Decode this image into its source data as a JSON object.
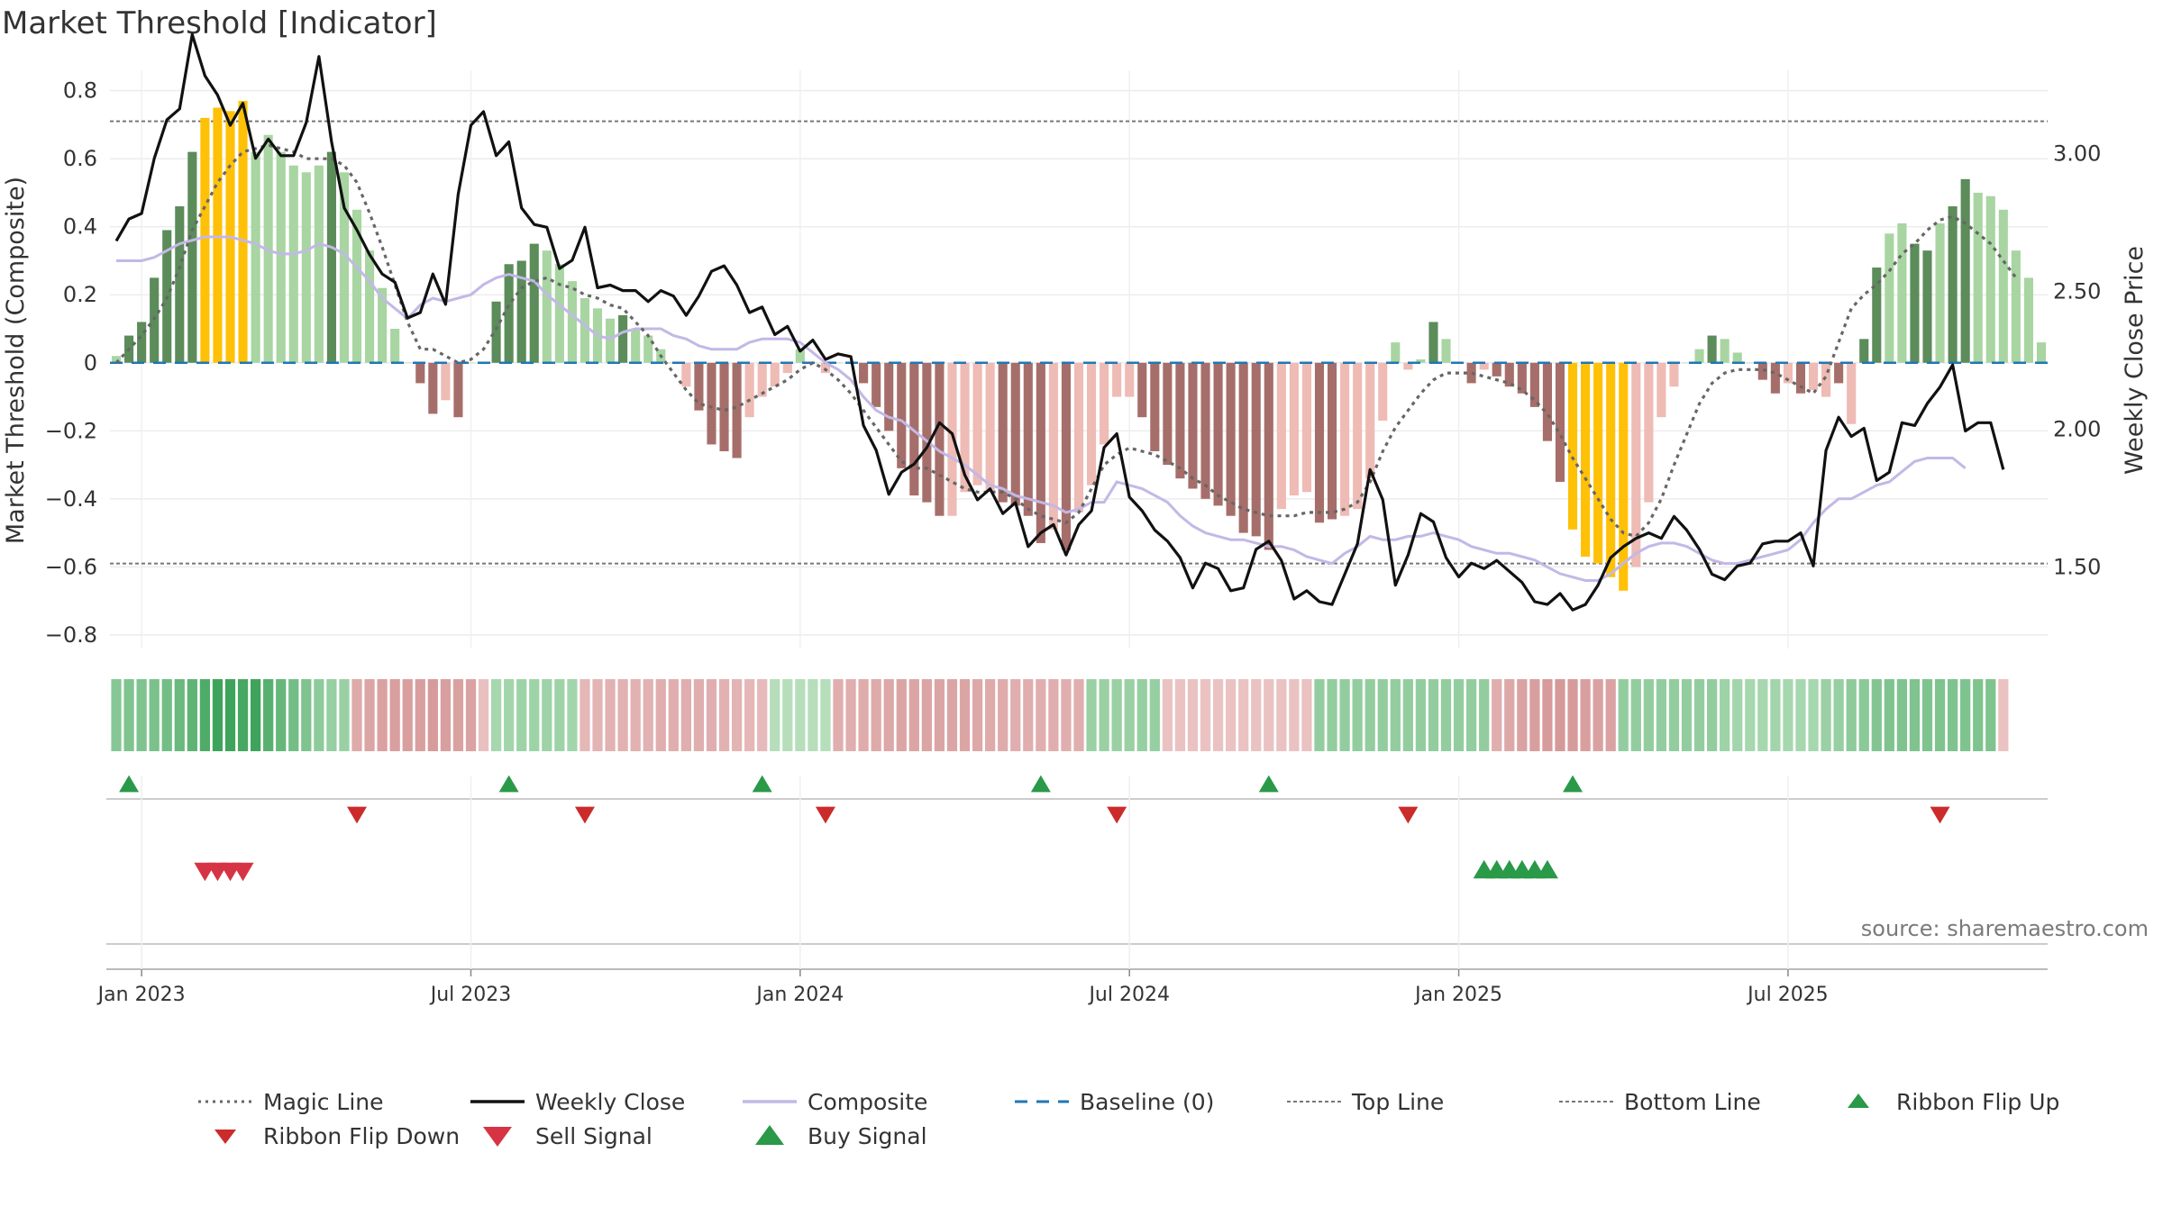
{
  "title": "Market Threshold [Indicator]",
  "source": "source: sharemaestro.com",
  "colors": {
    "dark_green": "#5b8c5a",
    "light_green": "#a8d5a2",
    "dark_red": "#a66e6a",
    "light_red": "#eebbb5",
    "gold": "#ffc107",
    "composite": "#c3b8e6",
    "baseline": "#1f77b4",
    "magic": "#666666",
    "close": "#111111",
    "buy": "#2a9948",
    "sell": "#d63445",
    "flip_up": "#2a9948",
    "flip_down": "#cc2b2b"
  },
  "legend": [
    {
      "label": "Magic Line",
      "icon": "dotted-line-icon"
    },
    {
      "label": "Weekly Close",
      "icon": "solid-line-icon"
    },
    {
      "label": "Composite",
      "icon": "lavender-line-icon"
    },
    {
      "label": "Baseline (0)",
      "icon": "dashed-line-icon"
    },
    {
      "label": "Top Line",
      "icon": "fine-dotted-line-icon"
    },
    {
      "label": "Bottom Line",
      "icon": "fine-dotted-line-icon"
    },
    {
      "label": "Ribbon Flip Up",
      "icon": "triangle-up-icon"
    },
    {
      "label": "Ribbon Flip Down",
      "icon": "triangle-down-icon"
    },
    {
      "label": "Sell Signal",
      "icon": "triangle-down-icon"
    },
    {
      "label": "Buy Signal",
      "icon": "triangle-up-icon"
    }
  ],
  "chart_data": {
    "type": "bar",
    "title": "Market Threshold [Indicator]",
    "ylabel": "Market Threshold (Composite)",
    "y2label": "Weekly Close Price",
    "ylim": [
      -0.84,
      0.86
    ],
    "y2lim": [
      1.2,
      3.3
    ],
    "yticks": [
      0.8,
      0.6,
      0.4,
      0.2,
      0,
      -0.2,
      -0.4,
      -0.6,
      -0.8
    ],
    "ytick_labels": [
      "0.8",
      "0.6",
      "0.4",
      "0.2",
      "0",
      "−0.2",
      "−0.4",
      "−0.6",
      "−0.8"
    ],
    "y2ticks": [
      3.0,
      2.5,
      2.0,
      1.5
    ],
    "y2tick_labels": [
      "3.00",
      "2.50",
      "2.00",
      "1.50"
    ],
    "xtick_labels": [
      "Jan 2023",
      "Jul 2023",
      "Jan 2024",
      "Jul 2024",
      "Jan 2025",
      "Jul 2025"
    ],
    "xtick_weeks": [
      2,
      28,
      54,
      80,
      106,
      132
    ],
    "top_line": 0.71,
    "bottom_line": -0.59,
    "baseline": 0,
    "grid": true,
    "legend_position": "bottom",
    "composite_bars": [
      0.02,
      0.08,
      0.12,
      0.25,
      0.39,
      0.46,
      0.62,
      0.72,
      0.75,
      0.74,
      0.77,
      0.62,
      0.67,
      0.62,
      0.58,
      0.56,
      0.58,
      0.62,
      0.56,
      0.45,
      0.33,
      0.22,
      0.1,
      0,
      -0.06,
      -0.15,
      -0.11,
      -0.16,
      0,
      0,
      0.18,
      0.29,
      0.3,
      0.35,
      0.33,
      0.29,
      0.24,
      0.19,
      0.16,
      0.13,
      0.14,
      0.1,
      0.08,
      0.04,
      0,
      -0.07,
      -0.14,
      -0.24,
      -0.26,
      -0.28,
      -0.16,
      -0.1,
      -0.07,
      -0.03,
      0.04,
      0,
      -0.03,
      0,
      0,
      -0.06,
      -0.13,
      -0.2,
      -0.31,
      -0.39,
      -0.41,
      -0.45,
      -0.45,
      -0.38,
      -0.36,
      -0.38,
      -0.41,
      -0.42,
      -0.45,
      -0.53,
      -0.49,
      -0.55,
      -0.44,
      -0.36,
      -0.24,
      -0.1,
      -0.1,
      -0.16,
      -0.26,
      -0.3,
      -0.34,
      -0.37,
      -0.4,
      -0.42,
      -0.45,
      -0.5,
      -0.51,
      -0.55,
      -0.43,
      -0.39,
      -0.38,
      -0.47,
      -0.46,
      -0.45,
      -0.43,
      -0.34,
      -0.17,
      0.06,
      -0.02,
      0.01,
      0.12,
      0.07,
      0,
      -0.06,
      -0.02,
      -0.04,
      -0.07,
      -0.09,
      -0.13,
      -0.23,
      -0.35,
      -0.49,
      -0.57,
      -0.59,
      -0.63,
      -0.67,
      -0.6,
      -0.41,
      -0.16,
      -0.07,
      0,
      0.04,
      0.08,
      0.07,
      0.03,
      0,
      -0.05,
      -0.09,
      -0.06,
      -0.09,
      -0.08,
      -0.1,
      -0.06,
      -0.18,
      0.07,
      0.28,
      0.38,
      0.41,
      0.35,
      0.33,
      0.41,
      0.46,
      0.54,
      0.5,
      0.49,
      0.45,
      0.33,
      0.25,
      0.06
    ],
    "bar_styles": [
      "L",
      "D",
      "D",
      "D",
      "D",
      "D",
      "D",
      "G",
      "G",
      "G",
      "G",
      "L",
      "L",
      "L",
      "L",
      "L",
      "L",
      "D",
      "L",
      "L",
      "L",
      "L",
      "L",
      "N",
      "D",
      "D",
      "L",
      "D",
      "N",
      "N",
      "D",
      "D",
      "D",
      "D",
      "L",
      "L",
      "L",
      "L",
      "L",
      "L",
      "D",
      "L",
      "L",
      "L",
      "N",
      "L",
      "D",
      "D",
      "D",
      "D",
      "L",
      "L",
      "L",
      "L",
      "L",
      "N",
      "L",
      "N",
      "N",
      "D",
      "D",
      "D",
      "D",
      "D",
      "D",
      "D",
      "L",
      "L",
      "L",
      "L",
      "D",
      "D",
      "D",
      "D",
      "L",
      "D",
      "L",
      "L",
      "L",
      "L",
      "L",
      "D",
      "D",
      "D",
      "D",
      "D",
      "D",
      "D",
      "D",
      "D",
      "D",
      "D",
      "L",
      "L",
      "L",
      "D",
      "D",
      "L",
      "L",
      "L",
      "L",
      "L",
      "L",
      "L",
      "D",
      "L",
      "N",
      "D",
      "L",
      "D",
      "D",
      "D",
      "D",
      "D",
      "D",
      "G",
      "G",
      "G",
      "G",
      "G",
      "L",
      "L",
      "L",
      "L",
      "N",
      "L",
      "D",
      "L",
      "L",
      "N",
      "D",
      "D",
      "L",
      "D",
      "L",
      "L",
      "D",
      "L",
      "D",
      "D",
      "L",
      "L",
      "D",
      "D",
      "L",
      "D",
      "D",
      "L",
      "L",
      "L",
      "L",
      "L"
    ],
    "weekly_close": [
      2.68,
      2.76,
      2.78,
      2.98,
      3.12,
      3.16,
      3.43,
      3.28,
      3.21,
      3.1,
      3.18,
      2.98,
      3.05,
      2.99,
      2.99,
      3.11,
      3.35,
      3.04,
      2.8,
      2.72,
      2.63,
      2.56,
      2.53,
      2.4,
      2.42,
      2.56,
      2.45,
      2.85,
      3.1,
      3.15,
      2.99,
      3.04,
      2.8,
      2.74,
      2.73,
      2.58,
      2.61,
      2.73,
      2.51,
      2.52,
      2.5,
      2.5,
      2.46,
      2.5,
      2.48,
      2.41,
      2.48,
      2.57,
      2.59,
      2.52,
      2.42,
      2.44,
      2.34,
      2.37,
      2.28,
      2.32,
      2.25,
      2.27,
      2.26,
      2.01,
      1.92,
      1.76,
      1.84,
      1.87,
      1.93,
      2.02,
      1.98,
      1.83,
      1.74,
      1.78,
      1.69,
      1.73,
      1.57,
      1.62,
      1.65,
      1.54,
      1.65,
      1.7,
      1.93,
      1.98,
      1.75,
      1.7,
      1.63,
      1.59,
      1.53,
      1.42,
      1.51,
      1.49,
      1.41,
      1.42,
      1.56,
      1.59,
      1.52,
      1.38,
      1.41,
      1.37,
      1.36,
      1.47,
      1.58,
      1.85,
      1.74,
      1.43,
      1.54,
      1.69,
      1.66,
      1.53,
      1.46,
      1.51,
      1.49,
      1.52,
      1.48,
      1.44,
      1.37,
      1.36,
      1.4,
      1.34,
      1.36,
      1.43,
      1.53,
      1.57,
      1.6,
      1.62,
      1.6,
      1.68,
      1.63,
      1.56,
      1.47,
      1.45,
      1.5,
      1.51,
      1.58,
      1.59,
      1.59,
      1.62,
      1.5,
      1.92,
      2.04,
      1.97,
      2.0,
      1.81,
      1.84,
      2.02,
      2.01,
      2.09,
      2.15,
      2.23,
      1.99,
      2.02,
      2.02,
      1.85
    ],
    "composite_line": [
      0.3,
      0.3,
      0.3,
      0.31,
      0.33,
      0.35,
      0.36,
      0.37,
      0.37,
      0.37,
      0.36,
      0.35,
      0.33,
      0.32,
      0.32,
      0.33,
      0.35,
      0.34,
      0.32,
      0.28,
      0.24,
      0.19,
      0.16,
      0.13,
      0.17,
      0.19,
      0.18,
      0.19,
      0.2,
      0.23,
      0.25,
      0.26,
      0.25,
      0.24,
      0.2,
      0.17,
      0.14,
      0.11,
      0.08,
      0.07,
      0.09,
      0.1,
      0.1,
      0.1,
      0.08,
      0.07,
      0.05,
      0.04,
      0.04,
      0.04,
      0.06,
      0.07,
      0.07,
      0.07,
      0.06,
      0.03,
      0.0,
      -0.02,
      -0.05,
      -0.1,
      -0.14,
      -0.16,
      -0.17,
      -0.2,
      -0.23,
      -0.26,
      -0.28,
      -0.3,
      -0.33,
      -0.36,
      -0.37,
      -0.39,
      -0.4,
      -0.41,
      -0.42,
      -0.44,
      -0.43,
      -0.41,
      -0.41,
      -0.35,
      -0.36,
      -0.37,
      -0.39,
      -0.41,
      -0.45,
      -0.48,
      -0.5,
      -0.51,
      -0.52,
      -0.52,
      -0.53,
      -0.54,
      -0.54,
      -0.55,
      -0.57,
      -0.58,
      -0.59,
      -0.56,
      -0.54,
      -0.51,
      -0.52,
      -0.52,
      -0.51,
      -0.51,
      -0.5,
      -0.51,
      -0.52,
      -0.54,
      -0.55,
      -0.56,
      -0.56,
      -0.57,
      -0.58,
      -0.6,
      -0.62,
      -0.63,
      -0.64,
      -0.64,
      -0.62,
      -0.59,
      -0.56,
      -0.54,
      -0.53,
      -0.53,
      -0.54,
      -0.56,
      -0.58,
      -0.59,
      -0.59,
      -0.58,
      -0.57,
      -0.56,
      -0.55,
      -0.52,
      -0.47,
      -0.43,
      -0.4,
      -0.4,
      -0.38,
      -0.36,
      -0.35,
      -0.32,
      -0.29,
      -0.28,
      -0.28,
      -0.28,
      -0.31
    ],
    "magic_line": [
      0.0,
      0.04,
      0.08,
      0.13,
      0.19,
      0.28,
      0.39,
      0.46,
      0.53,
      0.58,
      0.62,
      0.63,
      0.64,
      0.63,
      0.62,
      0.6,
      0.6,
      0.6,
      0.58,
      0.53,
      0.44,
      0.34,
      0.23,
      0.12,
      0.04,
      0.04,
      0.02,
      0.0,
      0.01,
      0.04,
      0.1,
      0.17,
      0.22,
      0.24,
      0.25,
      0.23,
      0.22,
      0.2,
      0.19,
      0.17,
      0.16,
      0.12,
      0.08,
      0.02,
      -0.03,
      -0.08,
      -0.12,
      -0.13,
      -0.14,
      -0.13,
      -0.11,
      -0.09,
      -0.07,
      -0.05,
      -0.02,
      0.0,
      -0.02,
      -0.05,
      -0.09,
      -0.14,
      -0.19,
      -0.24,
      -0.29,
      -0.31,
      -0.31,
      -0.33,
      -0.35,
      -0.37,
      -0.38,
      -0.38,
      -0.38,
      -0.4,
      -0.43,
      -0.45,
      -0.46,
      -0.47,
      -0.44,
      -0.37,
      -0.3,
      -0.27,
      -0.25,
      -0.26,
      -0.27,
      -0.29,
      -0.31,
      -0.34,
      -0.36,
      -0.39,
      -0.41,
      -0.43,
      -0.44,
      -0.45,
      -0.45,
      -0.45,
      -0.44,
      -0.44,
      -0.44,
      -0.43,
      -0.41,
      -0.35,
      -0.26,
      -0.19,
      -0.14,
      -0.09,
      -0.05,
      -0.03,
      -0.03,
      -0.03,
      -0.04,
      -0.05,
      -0.06,
      -0.08,
      -0.11,
      -0.15,
      -0.21,
      -0.28,
      -0.34,
      -0.4,
      -0.46,
      -0.5,
      -0.51,
      -0.47,
      -0.4,
      -0.3,
      -0.21,
      -0.12,
      -0.06,
      -0.03,
      -0.02,
      -0.02,
      -0.02,
      -0.03,
      -0.05,
      -0.07,
      -0.09,
      -0.04,
      0.06,
      0.16,
      0.2,
      0.23,
      0.27,
      0.32,
      0.35,
      0.39,
      0.42,
      0.43,
      0.41,
      0.38,
      0.35,
      0.3,
      0.25
    ],
    "ribbon": [
      0.5,
      0.55,
      0.55,
      0.58,
      0.62,
      0.68,
      0.75,
      0.85,
      0.95,
      0.95,
      0.9,
      0.95,
      0.8,
      0.7,
      0.62,
      0.55,
      0.45,
      0.4,
      0.38,
      -0.5,
      -0.55,
      -0.6,
      -0.62,
      -0.62,
      -0.62,
      -0.66,
      -0.62,
      -0.6,
      -0.58,
      -0.25,
      0.3,
      0.32,
      0.35,
      0.35,
      0.35,
      0.35,
      0.32,
      -0.35,
      -0.38,
      -0.42,
      -0.42,
      -0.42,
      -0.42,
      -0.45,
      -0.45,
      -0.45,
      -0.45,
      -0.45,
      -0.42,
      -0.38,
      -0.35,
      -0.32,
      0.2,
      0.2,
      0.2,
      0.2,
      0.2,
      -0.45,
      -0.45,
      -0.48,
      -0.5,
      -0.52,
      -0.55,
      -0.55,
      -0.55,
      -0.55,
      -0.55,
      -0.55,
      -0.52,
      -0.5,
      -0.48,
      -0.45,
      -0.45,
      -0.45,
      -0.45,
      -0.45,
      -0.45,
      0.38,
      0.38,
      0.38,
      0.38,
      0.4,
      0.4,
      -0.22,
      -0.22,
      -0.22,
      -0.22,
      -0.22,
      -0.22,
      -0.22,
      -0.22,
      -0.22,
      -0.22,
      -0.22,
      -0.22,
      0.42,
      0.42,
      0.42,
      0.42,
      0.42,
      0.42,
      0.42,
      0.42,
      0.42,
      0.42,
      0.42,
      0.42,
      0.42,
      0.42,
      -0.45,
      -0.52,
      -0.58,
      -0.62,
      -0.66,
      -0.68,
      -0.66,
      -0.62,
      -0.6,
      -0.58,
      0.42,
      0.42,
      0.42,
      0.42,
      0.42,
      0.42,
      0.42,
      0.42,
      0.35,
      0.32,
      0.3,
      0.3,
      0.32,
      0.3,
      0.3,
      0.3,
      0.38,
      0.4,
      0.45,
      0.48,
      0.52,
      0.55,
      0.55,
      0.55,
      0.55,
      0.55,
      0.55,
      0.55,
      0.55,
      0.55,
      -0.22
    ],
    "flip_up_weeks": [
      1,
      31,
      51,
      73,
      91,
      115
    ],
    "flip_down_weeks": [
      19,
      37,
      56,
      79,
      102,
      144
    ],
    "sell_signal_weeks": [
      7,
      8,
      9,
      10
    ],
    "buy_signal_weeks": [
      108,
      109,
      110,
      111,
      112,
      113
    ]
  }
}
